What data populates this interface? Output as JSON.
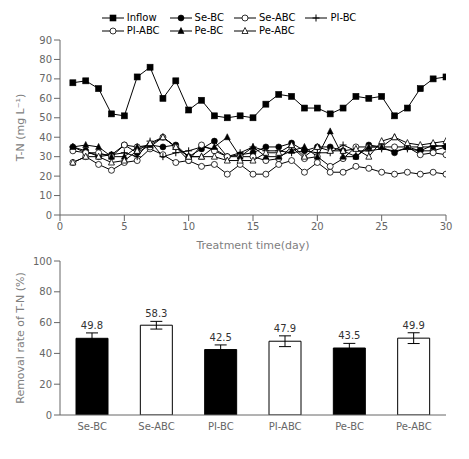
{
  "chart_data": [
    {
      "type": "line",
      "xlabel": "Treatment time(day)",
      "ylabel": "T-N (mg L⁻¹)",
      "x": [
        1,
        2,
        3,
        4,
        5,
        6,
        7,
        8,
        9,
        10,
        11,
        12,
        13,
        14,
        15,
        16,
        17,
        18,
        19,
        20,
        21,
        22,
        23,
        24,
        25,
        26,
        27,
        28,
        29,
        30
      ],
      "xlim": [
        0,
        30
      ],
      "xticks": [
        0,
        5,
        10,
        15,
        20,
        25,
        30
      ],
      "ylim": [
        0,
        90
      ],
      "yticks": [
        0,
        10,
        20,
        30,
        40,
        50,
        60,
        70,
        80,
        90
      ],
      "grid": false,
      "legend": "top",
      "series": [
        {
          "name": "Inflow",
          "color": "black",
          "marker": "square",
          "values": [
            68,
            69,
            65,
            52,
            51,
            71,
            76,
            60,
            69,
            54,
            59,
            51,
            50,
            51,
            50,
            57,
            62,
            61,
            55,
            55,
            52,
            55,
            61,
            60,
            61,
            51,
            55,
            65,
            70,
            71
          ]
        },
        {
          "name": "Se-BC",
          "color": "black",
          "marker": "circle",
          "values": [
            35,
            33,
            30,
            31,
            36,
            32,
            36,
            35,
            36,
            30,
            34,
            38,
            30,
            31,
            32,
            35,
            35,
            37,
            33,
            35,
            35,
            33,
            30,
            36,
            35,
            32,
            35,
            33,
            36,
            35
          ]
        },
        {
          "name": "Se-ABC",
          "color": "black",
          "marker": "open_circle",
          "values": [
            27,
            30,
            26,
            23,
            27,
            28,
            34,
            31,
            27,
            28,
            25,
            26,
            21,
            26,
            21,
            21,
            26,
            28,
            22,
            27,
            22,
            22,
            25,
            24,
            22,
            21,
            22,
            21,
            22,
            21
          ]
        },
        {
          "name": "PI-BC",
          "color": "black",
          "marker": "plus",
          "values": [
            35,
            32,
            31,
            31,
            32,
            30,
            38,
            30,
            32,
            33,
            35,
            34,
            30,
            32,
            35,
            33,
            33,
            32,
            33,
            32,
            32,
            36,
            33,
            33,
            34,
            33,
            34,
            33,
            33,
            35
          ]
        },
        {
          "name": "PI-ABC",
          "color": "black",
          "marker": "open_circle",
          "values": [
            33,
            32,
            32,
            30,
            36,
            35,
            35,
            40,
            35,
            28,
            36,
            33,
            30,
            30,
            30,
            28,
            29,
            35,
            29,
            30,
            25,
            29,
            35,
            35,
            35,
            35,
            35,
            31,
            32,
            31
          ]
        },
        {
          "name": "Pe-BC",
          "color": "black",
          "marker": "triangle",
          "values": [
            35,
            36,
            35,
            30,
            30,
            35,
            36,
            40,
            35,
            30,
            30,
            35,
            40,
            30,
            35,
            30,
            30,
            33,
            35,
            30,
            43,
            30,
            30,
            35,
            35,
            40,
            35,
            35,
            35,
            36
          ]
        },
        {
          "name": "Pe-ABC",
          "color": "black",
          "marker": "open_triangle",
          "values": [
            27,
            30,
            30,
            27,
            28,
            33,
            37,
            40,
            35,
            30,
            30,
            30,
            28,
            28,
            28,
            32,
            32,
            36,
            30,
            35,
            33,
            33,
            34,
            30,
            38,
            40,
            37,
            36,
            37,
            38
          ]
        }
      ]
    },
    {
      "type": "bar",
      "ylabel": "Removal rate of T-N (%)",
      "categories": [
        "Se-BC",
        "Se-ABC",
        "PI-BC",
        "PI-ABC",
        "Pe-BC",
        "Pe-ABC"
      ],
      "values": [
        49.8,
        58.3,
        42.5,
        47.9,
        43.5,
        49.9
      ],
      "errors": [
        3.5,
        2.5,
        3.0,
        3.5,
        3.0,
        3.5
      ],
      "colors": [
        "black",
        "white",
        "black",
        "white",
        "black",
        "white"
      ],
      "ylim": [
        0,
        100
      ],
      "yticks": [
        0,
        20,
        40,
        60,
        80,
        100
      ],
      "grid": false,
      "data_labels": true
    }
  ]
}
